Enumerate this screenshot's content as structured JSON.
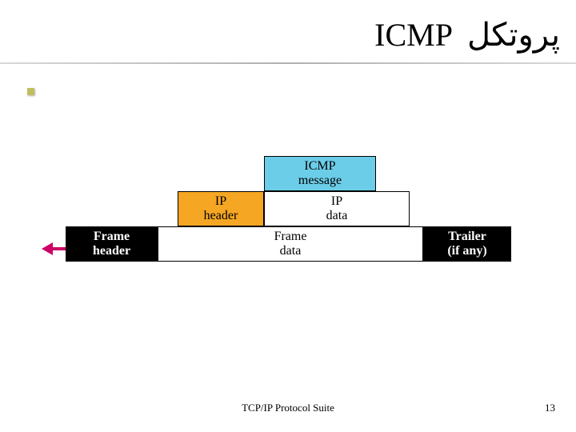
{
  "title": {
    "left": "ICMP",
    "right": "پروتکل"
  },
  "diagram": {
    "icmp_label": "ICMP\nmessage",
    "ip_header_label": "IP\nheader",
    "ip_data_label": "IP\ndata",
    "frame_header_label": "Frame\nheader",
    "frame_data_label": "Frame\ndata",
    "trailer_label": "Trailer\n(if any)",
    "colors": {
      "icmp_bg": "#6bcde8",
      "ip_header_bg": "#f5a623",
      "frame_header_bg": "#000000",
      "trailer_bg": "#000000",
      "arrow_color": "#cc0066",
      "border_color": "#000000"
    },
    "widths": {
      "frame_header": 115,
      "ip_header": 108,
      "icmp": 140,
      "ip_data_extra": 42,
      "frame_data_extra": 42,
      "trailer": 110
    }
  },
  "footer": {
    "text": "TCP/IP Protocol Suite",
    "page": "13"
  }
}
